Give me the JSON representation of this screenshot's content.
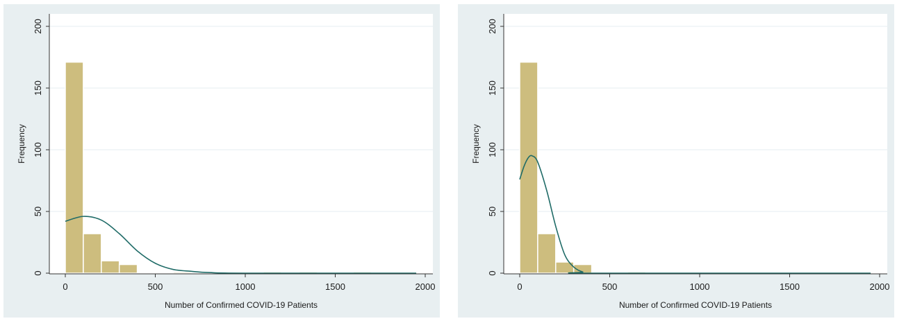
{
  "colors": {
    "panel_background": "#e8eff1",
    "plot_background": "#ffffff",
    "bar_fill": "#cdbd7e",
    "bar_stroke": "#ffffff",
    "curve": "#1f6b67",
    "gridline": "#e6eef0",
    "axis": "#333333"
  },
  "chart_data": [
    {
      "type": "bar",
      "subtype": "histogram_with_density_curve",
      "title": "",
      "xlabel": "Number of Confirmed COVID-19 Patients",
      "ylabel": "Frequency",
      "xlim": [
        0,
        2000
      ],
      "ylim": [
        0,
        200
      ],
      "xticks": [
        0,
        500,
        1000,
        1500,
        2000
      ],
      "yticks": [
        0,
        50,
        100,
        150,
        200
      ],
      "grid": true,
      "bin_width": 100,
      "bins": [
        {
          "x0": 0,
          "x1": 100,
          "count": 171
        },
        {
          "x0": 100,
          "x1": 200,
          "count": 32
        },
        {
          "x0": 200,
          "x1": 300,
          "count": 10
        },
        {
          "x0": 300,
          "x1": 400,
          "count": 7
        },
        {
          "x0": 600,
          "x1": 700,
          "count": 1
        },
        {
          "x0": 1100,
          "x1": 1200,
          "count": 1
        },
        {
          "x0": 1300,
          "x1": 1400,
          "count": 1
        },
        {
          "x0": 1600,
          "x1": 1700,
          "count": 1
        }
      ],
      "curve": {
        "type": "normal",
        "points": [
          [
            0,
            42
          ],
          [
            100,
            46
          ],
          [
            200,
            43
          ],
          [
            300,
            32
          ],
          [
            400,
            18
          ],
          [
            500,
            8
          ],
          [
            600,
            3
          ],
          [
            700,
            1.5
          ],
          [
            800,
            0.5
          ],
          [
            1000,
            0
          ],
          [
            1950,
            0
          ]
        ]
      }
    },
    {
      "type": "bar",
      "subtype": "histogram_with_density_curve",
      "title": "",
      "xlabel": "Number of Confirmed COVID-19 Patients",
      "ylabel": "Frequency",
      "xlim": [
        0,
        2000
      ],
      "ylim": [
        0,
        200
      ],
      "xticks": [
        0,
        500,
        1000,
        1500,
        2000
      ],
      "yticks": [
        0,
        50,
        100,
        150,
        200
      ],
      "grid": true,
      "bin_width": 100,
      "bins": [
        {
          "x0": 0,
          "x1": 100,
          "count": 171
        },
        {
          "x0": 100,
          "x1": 200,
          "count": 32
        },
        {
          "x0": 200,
          "x1": 300,
          "count": 9
        },
        {
          "x0": 300,
          "x1": 400,
          "count": 7
        },
        {
          "x0": 600,
          "x1": 700,
          "count": 1
        }
      ],
      "curve": {
        "type": "normal",
        "points": [
          [
            0,
            76
          ],
          [
            25,
            87
          ],
          [
            50,
            94
          ],
          [
            70,
            95
          ],
          [
            100,
            90
          ],
          [
            150,
            67
          ],
          [
            200,
            38
          ],
          [
            250,
            15
          ],
          [
            300,
            5
          ],
          [
            350,
            1
          ],
          [
            400,
            0
          ],
          [
            1950,
            0
          ]
        ]
      }
    }
  ]
}
